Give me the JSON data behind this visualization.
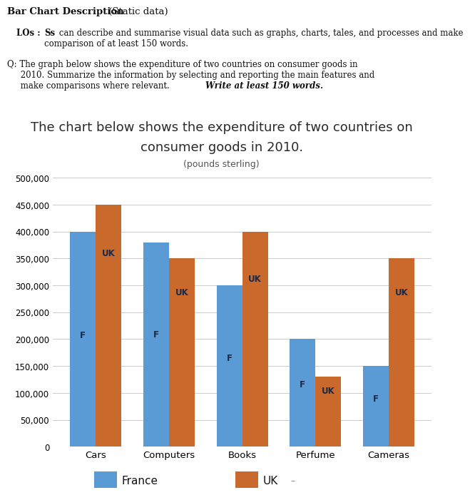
{
  "header_bold": "Bar Chart Description",
  "header_normal": " (Static data)",
  "los_bold": "LOs : ",
  "los_bold2": "Ss",
  "los_normal": " can describe and summarise visual data such as graphs, charts, tales, and processes and make\n        comparison of at least 150 words.",
  "q_line1": "Q: The graph below shows the expenditure of two countries on consumer goods in",
  "q_line2": "     2010. Summarize the information by selecting and reporting the main features and",
  "q_line3": "     make comparisons where relevant. ",
  "q_bold_italic": "Write at least 150 words.",
  "chart_title_line1": "The chart below shows the expenditure of two countries on",
  "chart_title_line2": "consumer goods in 2010.",
  "chart_subtitle": "(pounds sterling)",
  "categories": [
    "Cars",
    "Computers",
    "Books",
    "Perfume",
    "Cameras"
  ],
  "france_values": [
    400000,
    380000,
    300000,
    200000,
    150000
  ],
  "uk_values": [
    450000,
    350000,
    400000,
    130000,
    350000
  ],
  "france_color": "#5B9BD5",
  "uk_color": "#C96A2C",
  "bar_label_france": "F",
  "bar_label_uk": "UK",
  "ylim": [
    0,
    500000
  ],
  "yticks": [
    0,
    50000,
    100000,
    150000,
    200000,
    250000,
    300000,
    350000,
    400000,
    450000,
    500000
  ],
  "legend_france": "France",
  "legend_uk": "UK",
  "background_color": "#FFFFFF",
  "text_color": "#111111"
}
